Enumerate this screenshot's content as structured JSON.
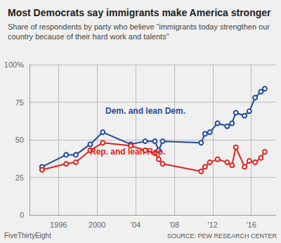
{
  "chart_data": {
    "type": "line",
    "title": "Most Democrats say immigrants make America stronger",
    "subtitle": "Share of respondents by party who believe “immigrants today strengthen our country because of their hard work and talents”",
    "credit": "FiveThirtyEight",
    "source": "SOURCE: PEW RESEARCH CENTER",
    "x": [
      1994.3,
      1996.8,
      1997.8,
      1999.3,
      2000.6,
      2003.5,
      2005.0,
      2006.0,
      2006.4,
      2006.8,
      2010.8,
      2011.2,
      2011.7,
      2012.5,
      2013.5,
      2014.0,
      2014.4,
      2015.3,
      2015.8,
      2016.4,
      2017.0,
      2017.4
    ],
    "series": [
      {
        "name": "Dem. and lean Dem.",
        "color": "#1f4b9b",
        "marker": "circle_open",
        "values": [
          32,
          40,
          40,
          47,
          55,
          47,
          49,
          49,
          43,
          49,
          48,
          54,
          55,
          61,
          59,
          61,
          68,
          66,
          69,
          78,
          82,
          84
        ]
      },
      {
        "name": "Rep. and lean Rep.",
        "color": "#e0231e",
        "marker": "circle_open",
        "values": [
          30,
          34,
          35,
          43,
          48,
          46,
          43,
          41,
          37,
          34,
          29,
          32,
          35,
          37,
          35,
          33,
          45,
          32,
          36,
          35,
          38,
          42
        ]
      }
    ],
    "xlim": [
      1993,
      2018.5
    ],
    "xticks": [
      1996,
      2000,
      {
        "value": 2004,
        "label": "'04"
      },
      {
        "value": 2008,
        "label": "'08"
      },
      {
        "value": 2012,
        "label": "'12"
      },
      {
        "value": 2016,
        "label": "'16"
      }
    ],
    "ylim": [
      0,
      100
    ],
    "yticks": [
      0,
      25,
      50,
      75,
      {
        "value": 100,
        "label": "100%"
      }
    ],
    "grid": true
  }
}
